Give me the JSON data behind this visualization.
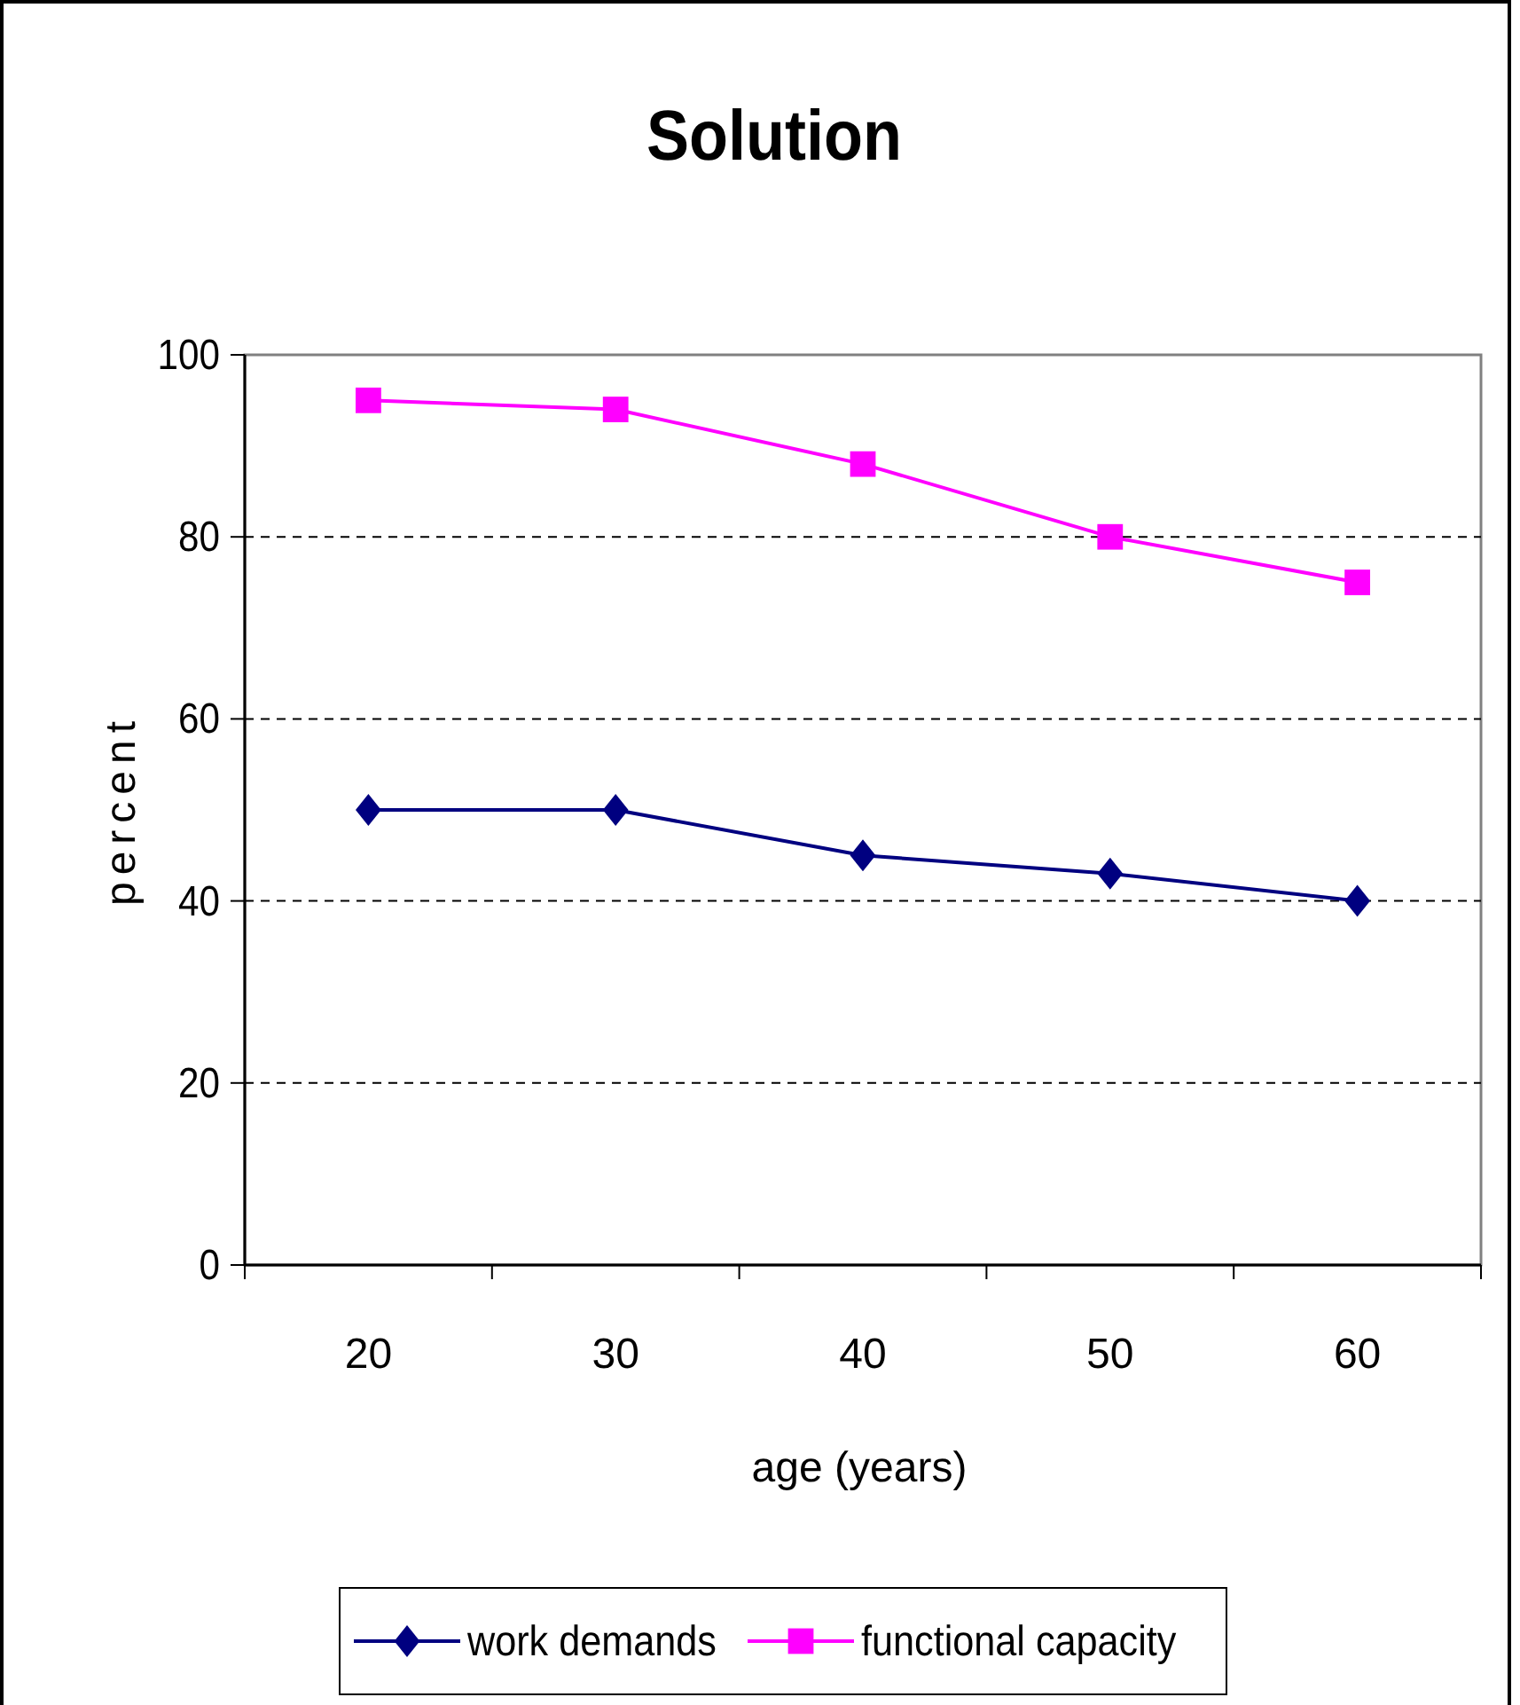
{
  "chart_data": {
    "type": "line",
    "title": "Solution",
    "xlabel": "age (years)",
    "ylabel": "percent",
    "categories": [
      "20",
      "30",
      "40",
      "50",
      "60"
    ],
    "ylim": [
      0,
      100
    ],
    "yticks": [
      0,
      20,
      40,
      60,
      80,
      100
    ],
    "grid": "y",
    "legend": "bottom",
    "series": [
      {
        "name": "work demands",
        "color": "#000080",
        "marker": "diamond",
        "values": [
          50,
          50,
          45,
          43,
          40
        ]
      },
      {
        "name": "functional capacity",
        "color": "#ff00ff",
        "marker": "square",
        "values": [
          95,
          94,
          88,
          80,
          75
        ]
      }
    ]
  }
}
